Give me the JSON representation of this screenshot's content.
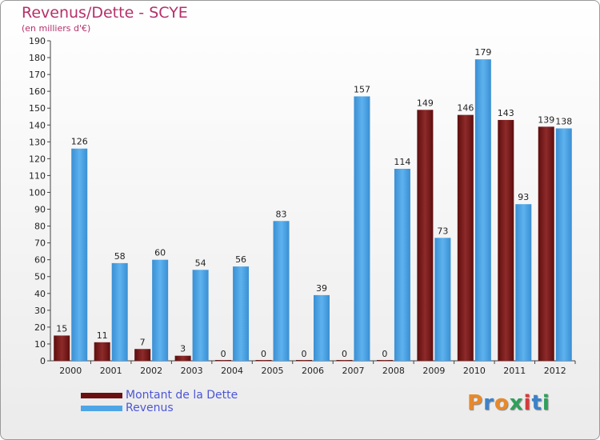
{
  "title": "Revenus/Dette - SCYE",
  "subtitle": "(en milliers d'€)",
  "logo_text": "Proxiti",
  "colors": {
    "dette": "#7a1c1c",
    "revenus": "#4ea6e6",
    "title": "#b5306a",
    "legend_text": "#4c56d6"
  },
  "chart_data": {
    "type": "bar",
    "categories": [
      "2000",
      "2001",
      "2002",
      "2003",
      "2004",
      "2005",
      "2006",
      "2007",
      "2008",
      "2009",
      "2010",
      "2011",
      "2012"
    ],
    "series": [
      {
        "name": "Montant de la Dette",
        "values": [
          15,
          11,
          7,
          3,
          0,
          0,
          0,
          0,
          0,
          149,
          146,
          143,
          139
        ]
      },
      {
        "name": "Revenus",
        "values": [
          126,
          58,
          60,
          54,
          56,
          83,
          39,
          157,
          114,
          73,
          179,
          93,
          138
        ]
      }
    ],
    "yticks": [
      0,
      10,
      20,
      30,
      40,
      50,
      60,
      70,
      80,
      90,
      100,
      110,
      120,
      130,
      140,
      150,
      160,
      170,
      180,
      190
    ],
    "ylim": [
      0,
      190
    ],
    "title": "Revenus/Dette - SCYE",
    "ylabel": "(en milliers d'€)",
    "xlabel": "",
    "legend_position": "bottom-left",
    "grid": false
  }
}
